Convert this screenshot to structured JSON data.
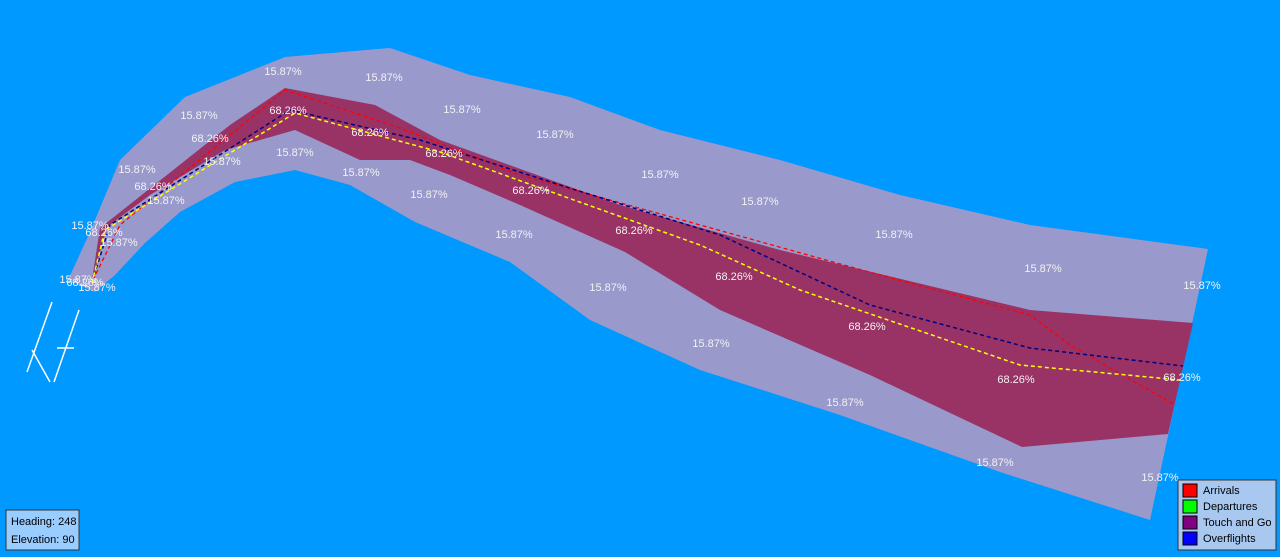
{
  "map": {
    "outer_labels": [
      "15.87%",
      "15.87%",
      "15.87%",
      "15.87%",
      "15.87%",
      "15.87%",
      "15.87%",
      "15.87%",
      "15.87%",
      "15.87%",
      "15.87%",
      "15.87%",
      "15.87%",
      "15.87%",
      "15.87%",
      "15.87%",
      "15.87%",
      "15.87%",
      "15.87%",
      "15.87%",
      "15.87%",
      "15.87%",
      "15.87%",
      "15.87%",
      "15.87%",
      "15.87%"
    ],
    "inner_labels": [
      "68.26%",
      "68.26%",
      "68.26%",
      "68.26%",
      "68.26%",
      "68.26%",
      "68.26%",
      "68.26%",
      "68.26%",
      "68.26%",
      "68.26%",
      "68.26%",
      "68.26%"
    ]
  },
  "legend": {
    "items": [
      {
        "label": "Arrivals",
        "color": "#ff0000"
      },
      {
        "label": "Departures",
        "color": "#00ff00"
      },
      {
        "label": "Touch and Go",
        "color": "#800080"
      },
      {
        "label": "Overflights",
        "color": "#0000ff"
      }
    ]
  },
  "info": {
    "heading": "Heading: 248",
    "elevation": "Elevation: 90"
  }
}
